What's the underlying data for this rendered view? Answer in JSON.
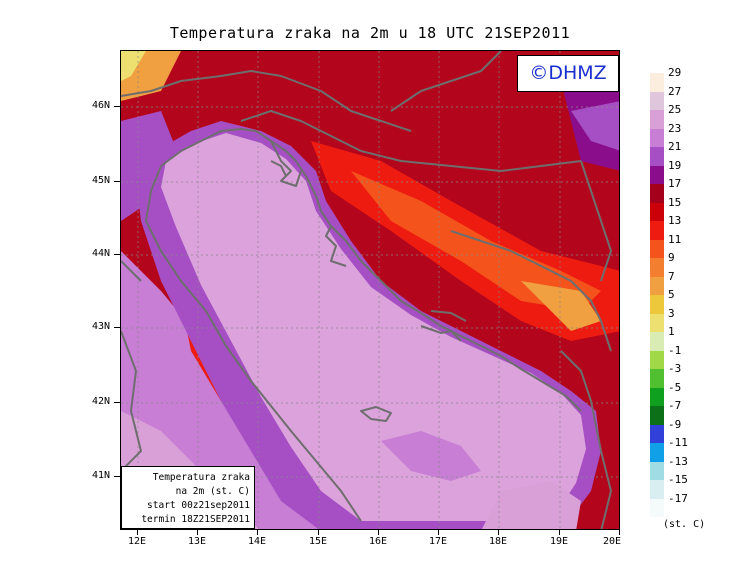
{
  "title": "Temperatura zraka na 2m u 18 UTC 21SEP2011",
  "copyright": "©DHMZ",
  "info_box": {
    "line1": "Temperatura zraka",
    "line2": "na 2m (st. C)",
    "line3": "start 00z21sep2011",
    "line4": "termin 18Z21SEP2011"
  },
  "latitude_labels": [
    "46N",
    "45N",
    "44N",
    "43N",
    "42N",
    "41N"
  ],
  "longitude_labels": [
    "12E",
    "13E",
    "14E",
    "15E",
    "16E",
    "17E",
    "18E",
    "19E",
    "20E"
  ],
  "legend": {
    "unit": "(st. C)",
    "labels": [
      "29",
      "27",
      "25",
      "23",
      "21",
      "19",
      "17",
      "15",
      "13",
      "11",
      "9",
      "7",
      "5",
      "3",
      "1",
      "-1",
      "-3",
      "-5",
      "-7",
      "-9",
      "-11",
      "-13",
      "-15",
      "-17"
    ],
    "colors": [
      "#fbeedf",
      "#e0c6dc",
      "#d9a0d8",
      "#c77ed4",
      "#a64fc4",
      "#8a0e8c",
      "#a4001c",
      "#cc0008",
      "#ee1c10",
      "#f4541c",
      "#f47e30",
      "#f0a040",
      "#ecc83a",
      "#eee070",
      "#d8ecb4",
      "#a0d848",
      "#50c030",
      "#10a020",
      "#0c7018",
      "#3040d8",
      "#10a0e8",
      "#a0dce4",
      "#d8eef0",
      "#f4fbfa"
    ]
  },
  "colors": {
    "sea": "#dca2dc",
    "coastline": "#6e6e6e",
    "copyright_text": "#1a2fd0"
  }
}
